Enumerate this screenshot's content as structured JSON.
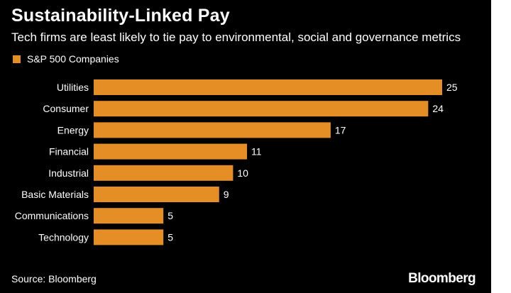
{
  "colors": {
    "background": "#000000",
    "bar": "#e58e26",
    "text": "#ffffff"
  },
  "footer": {
    "source": "Source: Bloomberg",
    "logo": "Bloomberg"
  },
  "chart_data": {
    "type": "bar",
    "orientation": "horizontal",
    "title": "Sustainability-Linked Pay",
    "subtitle": "Tech firms are least likely to tie pay to environmental, social and governance metrics",
    "legend": {
      "placement": "top-left",
      "entries": [
        "S&P 500 Companies"
      ]
    },
    "categories": [
      "Utilities",
      "Consumer",
      "Energy",
      "Financial",
      "Industrial",
      "Basic Materials",
      "Communications",
      "Technology"
    ],
    "series": [
      {
        "name": "S&P 500 Companies",
        "values": [
          25,
          24,
          17,
          11,
          10,
          9,
          5,
          5
        ]
      }
    ],
    "xlim": [
      0,
      25
    ],
    "grid": false,
    "data_labels": true
  }
}
